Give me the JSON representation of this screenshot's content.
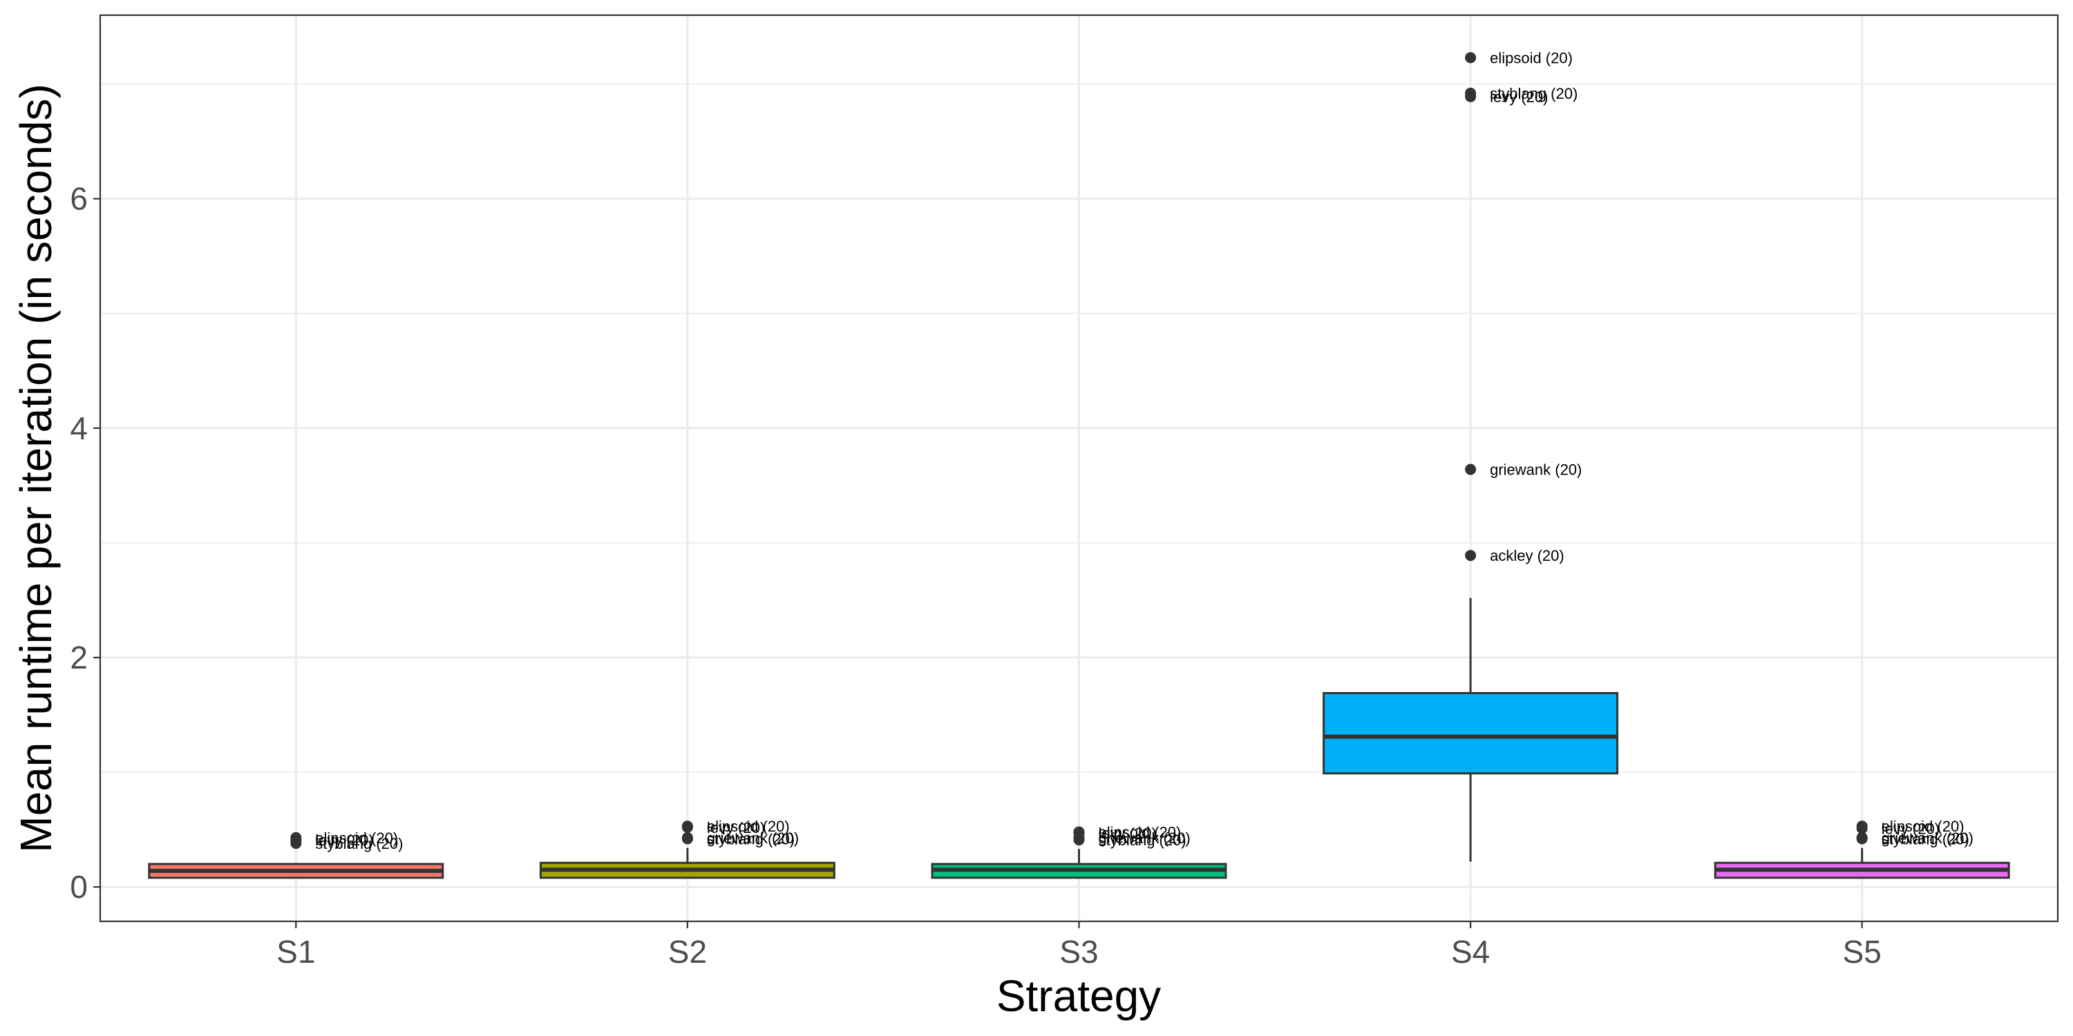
{
  "chart_data": {
    "type": "box",
    "title": "",
    "xlabel": "Strategy",
    "ylabel": "Mean runtime per iteration (in seconds)",
    "ylim": [
      -0.3,
      7.6
    ],
    "yticks": [
      0,
      2,
      4,
      6
    ],
    "grid": true,
    "categories": [
      "S1",
      "S2",
      "S3",
      "S4",
      "S5"
    ],
    "boxes": [
      {
        "category": "S1",
        "color": "#F8766D",
        "whisker_low": 0.08,
        "q1": 0.08,
        "median": 0.14,
        "q3": 0.2,
        "whisker_high": 0.2,
        "outliers": [
          {
            "value": 0.43,
            "label": "elipsoid (20)"
          },
          {
            "value": 0.41,
            "label": "levy (20)"
          },
          {
            "value": 0.38,
            "label": "styblang (20)"
          }
        ]
      },
      {
        "category": "S2",
        "color": "#A3A500",
        "whisker_low": 0.08,
        "q1": 0.08,
        "median": 0.15,
        "q3": 0.21,
        "whisker_high": 0.34,
        "outliers": [
          {
            "value": 0.53,
            "label": "elipsoid (20)"
          },
          {
            "value": 0.52,
            "label": "levy (20)"
          },
          {
            "value": 0.43,
            "label": "griewank (20)"
          },
          {
            "value": 0.42,
            "label": "styblang (20)"
          }
        ]
      },
      {
        "category": "S3",
        "color": "#00BF7D",
        "whisker_low": 0.08,
        "q1": 0.08,
        "median": 0.15,
        "q3": 0.2,
        "whisker_high": 0.33,
        "outliers": [
          {
            "value": 0.48,
            "label": "elipsoid (20)"
          },
          {
            "value": 0.47,
            "label": "levy (20)"
          },
          {
            "value": 0.43,
            "label": "griewank (20)"
          },
          {
            "value": 0.41,
            "label": "styblang (20)"
          }
        ]
      },
      {
        "category": "S4",
        "color": "#00B0F6",
        "whisker_low": 0.22,
        "q1": 0.99,
        "median": 1.31,
        "q3": 1.69,
        "whisker_high": 2.52,
        "outliers": [
          {
            "value": 7.23,
            "label": "elipsoid (20)"
          },
          {
            "value": 6.92,
            "label": "styblang (20)"
          },
          {
            "value": 6.89,
            "label": "levy (20)"
          },
          {
            "value": 3.64,
            "label": "griewank (20)"
          },
          {
            "value": 2.89,
            "label": "ackley (20)"
          }
        ]
      },
      {
        "category": "S5",
        "color": "#E76BF3",
        "whisker_low": 0.08,
        "q1": 0.08,
        "median": 0.15,
        "q3": 0.21,
        "whisker_high": 0.34,
        "outliers": [
          {
            "value": 0.53,
            "label": "elipsoid (20)"
          },
          {
            "value": 0.51,
            "label": "levy (20)"
          },
          {
            "value": 0.43,
            "label": "griewank (20)"
          },
          {
            "value": 0.42,
            "label": "styblang (20)"
          }
        ]
      }
    ]
  }
}
